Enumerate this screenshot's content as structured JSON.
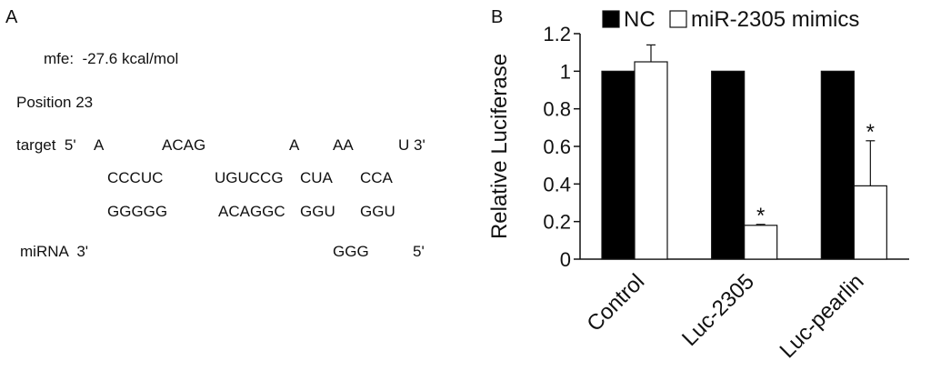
{
  "panel_a": {
    "label": "A",
    "mfe": "mfe:  -27.6 kcal/mol",
    "position": "Position 23",
    "target_prefix": "target  5'",
    "row1": [
      "A",
      "ACAG",
      "A",
      "AA",
      "U 3'"
    ],
    "row2": [
      "CCCUC",
      "UGUCCG",
      "CUA",
      "CCA"
    ],
    "row3": [
      "GGGGG",
      "ACAGGC",
      "GGU",
      "GGU"
    ],
    "mirna_prefix": "miRNA  3'",
    "row4": [
      "GGG",
      "5'"
    ]
  },
  "panel_b": {
    "label": "B"
  },
  "chart_data": {
    "type": "bar",
    "categories": [
      "Control",
      "Luc-2305",
      "Luc-pearlin"
    ],
    "series": [
      {
        "name": "NC",
        "values": [
          1,
          1,
          1
        ],
        "color": "#000000"
      },
      {
        "name": "miR-2305 mimics",
        "values": [
          1.05,
          0.18,
          0.39
        ],
        "errors": [
          0.09,
          0.005,
          0.24
        ],
        "color": "#ffffff"
      }
    ],
    "significance": [
      "",
      "*",
      "*"
    ],
    "ylabel": "Relative Luciferase",
    "ylim": [
      0,
      1.2
    ],
    "yticks": [
      "0",
      "0.2",
      "0.4",
      "0.6",
      "0.8",
      "1",
      "1.2"
    ],
    "legend_position": "top",
    "grid": false
  }
}
